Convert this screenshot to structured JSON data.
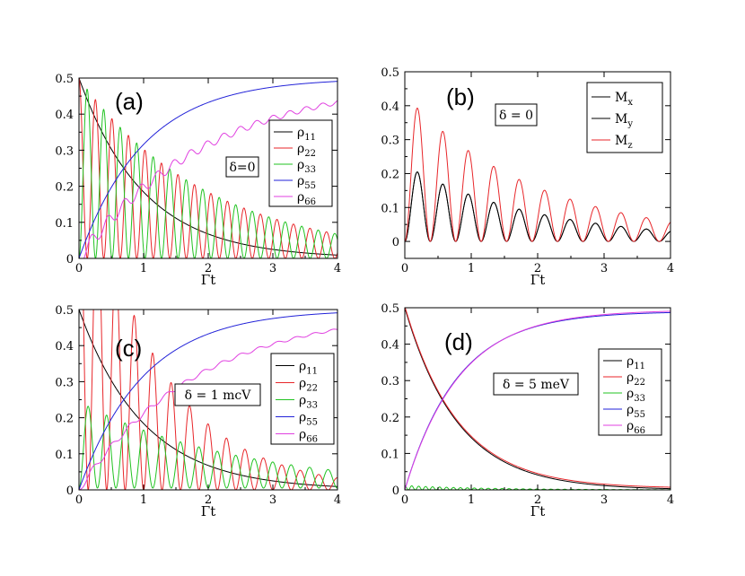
{
  "chart_data": [
    {
      "id": "a",
      "type": "line",
      "panel_label": "(a)",
      "annotation": "δ=0",
      "xlabel": "Γt",
      "ylabel": "",
      "xlim": [
        0,
        4
      ],
      "ylim": [
        0,
        0.5
      ],
      "xticks": [
        "0",
        "1",
        "2",
        "3",
        "4"
      ],
      "yticks": [
        "0",
        "0.1",
        "0.2",
        "0.3",
        "0.4",
        "0.5"
      ],
      "grid": false,
      "legend_position": "right",
      "series": [
        {
          "name": "ρ11",
          "sym": "ρ",
          "sub": "11",
          "color": "#000000",
          "kind": "exp",
          "A": 0.5,
          "k": 1,
          "omega": 0
        },
        {
          "name": "ρ22",
          "sym": "ρ",
          "sub": "22",
          "color": "#e8262a",
          "kind": "osc",
          "A": 0.25,
          "k": 0.5,
          "omega": 24.6,
          "phase": 0
        },
        {
          "name": "ρ33",
          "sym": "ρ",
          "sub": "33",
          "color": "#22c322",
          "kind": "osc",
          "A": 0.25,
          "k": 0.5,
          "omega": 24.6,
          "phase": 3.14159
        },
        {
          "name": "ρ55",
          "sym": "ρ",
          "sub": "55",
          "color": "#2222d8",
          "kind": "rise",
          "A": 0.5,
          "k": 1,
          "omega": 0
        },
        {
          "name": "ρ66",
          "sym": "ρ",
          "sub": "66",
          "color": "#e040e0",
          "kind": "stair",
          "A": 0.5,
          "k": 0.5,
          "omega": 24.6,
          "ripple": 0.025
        }
      ]
    },
    {
      "id": "b",
      "type": "line",
      "panel_label": "(b)",
      "annotation": "δ = 0",
      "xlabel": "Γt",
      "ylabel": "",
      "xlim": [
        0,
        4
      ],
      "ylim": [
        -0.05,
        0.5
      ],
      "xticks": [
        "0",
        "1",
        "2",
        "3",
        "4"
      ],
      "yticks": [
        "0",
        "0.1",
        "0.2",
        "0.3",
        "0.4",
        "0.5"
      ],
      "grid": false,
      "legend_position": "top-right",
      "series": [
        {
          "name": "Mx",
          "sym": "M",
          "sub": "x",
          "color": "#000000",
          "kind": "mag",
          "A": 0.125,
          "k": 0.5,
          "omega": 16.4
        },
        {
          "name": "My",
          "sym": "M",
          "sub": "y",
          "color": "#000000",
          "kind": "mag",
          "A": 0.125,
          "k": 0.5,
          "omega": 16.4
        },
        {
          "name": "Mz",
          "sym": "M",
          "sub": "z",
          "color": "#e8262a",
          "kind": "mag",
          "A": 0.24,
          "k": 0.5,
          "omega": 16.4
        }
      ]
    },
    {
      "id": "c",
      "type": "line",
      "panel_label": "(c)",
      "annotation": "δ = 1 mcV",
      "xlabel": "Γt",
      "ylabel": "",
      "xlim": [
        0,
        4
      ],
      "ylim": [
        0,
        0.5
      ],
      "xticks": [
        "0",
        "1",
        "2",
        "3",
        "4"
      ],
      "yticks": [
        "0",
        "0.1",
        "0.2",
        "0.3",
        "0.4",
        "0.5"
      ],
      "grid": false,
      "legend_position": "right",
      "series": [
        {
          "name": "ρ11",
          "sym": "ρ",
          "sub": "11",
          "color": "#000000",
          "kind": "exp",
          "A": 0.5,
          "k": 1.0,
          "omega": 0
        },
        {
          "name": "ρ22",
          "sym": "ρ",
          "sub": "22",
          "color": "#e8262a",
          "kind": "osc",
          "A": 0.5,
          "k": 0.85,
          "omega": 22,
          "phase": 0
        },
        {
          "name": "ρ33",
          "sym": "ρ",
          "sub": "33",
          "color": "#22c322",
          "kind": "osc2",
          "A": 0.24,
          "k": 0.4,
          "omega": 22,
          "phase": 3.14159
        },
        {
          "name": "ρ55",
          "sym": "ρ",
          "sub": "55",
          "color": "#2222d8",
          "kind": "rise",
          "A": 0.5,
          "k": 1.0,
          "omega": 0
        },
        {
          "name": "ρ66",
          "sym": "ρ",
          "sub": "66",
          "color": "#e040e0",
          "kind": "stair",
          "A": 0.5,
          "k": 0.55,
          "omega": 22,
          "ripple": 0.012
        }
      ]
    },
    {
      "id": "d",
      "type": "line",
      "panel_label": "(d)",
      "annotation": "δ = 5 meV",
      "xlabel": "Γt",
      "ylabel": "",
      "xlim": [
        0,
        4
      ],
      "ylim": [
        0,
        0.5
      ],
      "xticks": [
        "0",
        "1",
        "2",
        "3",
        "4"
      ],
      "yticks": [
        "0",
        "0.1",
        "0.2",
        "0.3",
        "0.4",
        "0.5"
      ],
      "grid": false,
      "legend_position": "right",
      "series": [
        {
          "name": "ρ11",
          "sym": "ρ",
          "sub": "11",
          "color": "#000000",
          "kind": "exp",
          "A": 0.5,
          "k": 1.25,
          "omega": 0
        },
        {
          "name": "ρ22",
          "sym": "ρ",
          "sub": "22",
          "color": "#e8262a",
          "kind": "exp",
          "A": 0.5,
          "k": 1.25,
          "omega": 0,
          "offset": 0.004
        },
        {
          "name": "ρ33",
          "sym": "ρ",
          "sub": "33",
          "color": "#22c322",
          "kind": "tiny",
          "A": 0.012,
          "k": 0.8,
          "omega": 60
        },
        {
          "name": "ρ55",
          "sym": "ρ",
          "sub": "55",
          "color": "#2222d8",
          "kind": "rise",
          "A": 0.49,
          "k": 1.25,
          "omega": 0
        },
        {
          "name": "ρ66",
          "sym": "ρ",
          "sub": "66",
          "color": "#e040e0",
          "kind": "rise",
          "A": 0.494,
          "k": 1.22,
          "omega": 0
        }
      ]
    }
  ]
}
